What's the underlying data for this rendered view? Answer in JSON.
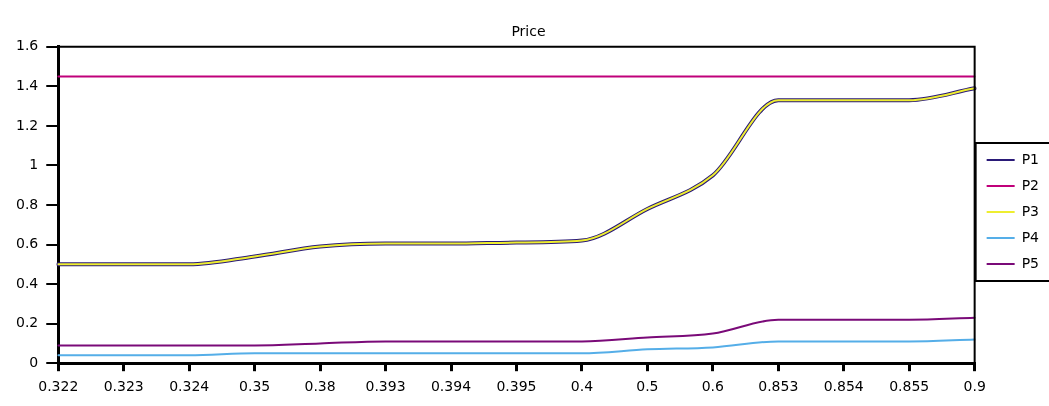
{
  "chart_data": {
    "type": "line",
    "title": "Price",
    "categories": [
      "0.322",
      "0.323",
      "0.324",
      "0.35",
      "0.38",
      "0.393",
      "0.394",
      "0.395",
      "0.4",
      "0.5",
      "0.6",
      "0.853",
      "0.854",
      "0.855",
      "0.9"
    ],
    "series": [
      {
        "name": "P1",
        "color": "#2a1a78",
        "values": [
          0.5,
          0.5,
          0.5,
          0.54,
          0.59,
          0.605,
          0.605,
          0.61,
          0.62,
          0.78,
          0.95,
          1.33,
          1.33,
          1.33,
          1.39
        ]
      },
      {
        "name": "P2",
        "color": "#c0007a",
        "values": [
          1.45,
          1.45,
          1.45,
          1.45,
          1.45,
          1.45,
          1.45,
          1.45,
          1.45,
          1.45,
          1.45,
          1.45,
          1.45,
          1.45,
          1.45
        ]
      },
      {
        "name": "P3",
        "color": "#eeee30",
        "values": [
          0.5,
          0.5,
          0.5,
          0.54,
          0.59,
          0.605,
          0.605,
          0.61,
          0.62,
          0.78,
          0.95,
          1.33,
          1.33,
          1.33,
          1.39
        ]
      },
      {
        "name": "P4",
        "color": "#55aee8",
        "values": [
          0.04,
          0.04,
          0.04,
          0.05,
          0.05,
          0.05,
          0.05,
          0.05,
          0.05,
          0.07,
          0.08,
          0.11,
          0.11,
          0.11,
          0.12
        ]
      },
      {
        "name": "P5",
        "color": "#7a0a78",
        "values": [
          0.09,
          0.09,
          0.09,
          0.09,
          0.1,
          0.11,
          0.11,
          0.11,
          0.11,
          0.13,
          0.15,
          0.22,
          0.22,
          0.22,
          0.23
        ]
      }
    ],
    "ylim": [
      0,
      1.6
    ],
    "yticks": [
      0,
      0.2,
      0.4,
      0.6,
      0.8,
      1,
      1.2,
      1.4,
      1.6
    ],
    "grid": false,
    "legend": "right",
    "marker": "none",
    "line_style": "solid"
  }
}
